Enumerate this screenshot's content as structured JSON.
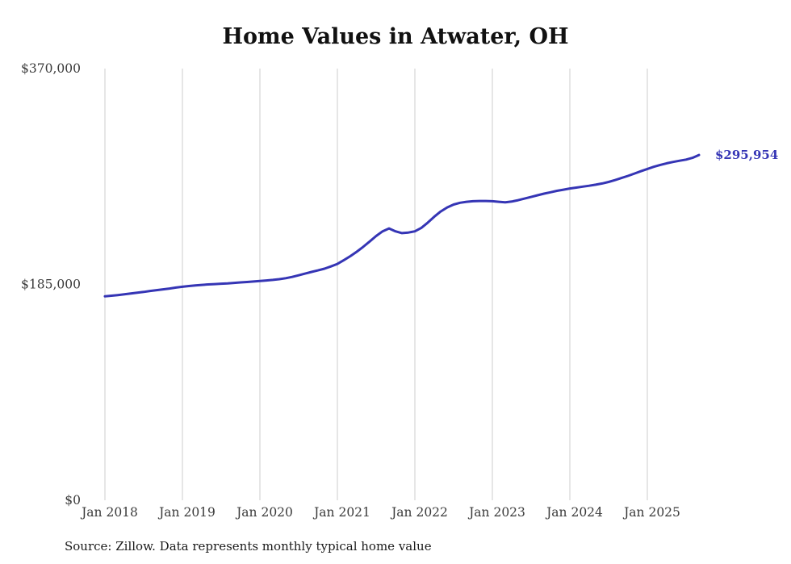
{
  "chart_data": {
    "type": "line",
    "title": "Home Values in Atwater, OH",
    "source": "Source: Zillow. Data represents monthly typical home value",
    "end_label": "$295,954",
    "end_value": 295954,
    "line_color": "#3535b5",
    "grid": "vertical",
    "grid_color": "#cccccc",
    "tick_text_color": "#3a3a3a",
    "ylim": [
      0,
      370000
    ],
    "y_ticks": [
      0,
      185000,
      370000
    ],
    "y_tick_labels": [
      "$0",
      "$185,000",
      "$370,000"
    ],
    "x_tick_labels": [
      "Jan 2018",
      "Jan 2019",
      "Jan 2020",
      "Jan 2021",
      "Jan 2022",
      "Jan 2023",
      "Jan 2024",
      "Jan 2025"
    ],
    "x": [
      "2018-01",
      "2018-02",
      "2018-03",
      "2018-04",
      "2018-05",
      "2018-06",
      "2018-07",
      "2018-08",
      "2018-09",
      "2018-10",
      "2018-11",
      "2018-12",
      "2019-01",
      "2019-02",
      "2019-03",
      "2019-04",
      "2019-05",
      "2019-06",
      "2019-07",
      "2019-08",
      "2019-09",
      "2019-10",
      "2019-11",
      "2019-12",
      "2020-01",
      "2020-02",
      "2020-03",
      "2020-04",
      "2020-05",
      "2020-06",
      "2020-07",
      "2020-08",
      "2020-09",
      "2020-10",
      "2020-11",
      "2020-12",
      "2021-01",
      "2021-02",
      "2021-03",
      "2021-04",
      "2021-05",
      "2021-06",
      "2021-07",
      "2021-08",
      "2021-09",
      "2021-10",
      "2021-11",
      "2021-12",
      "2022-01",
      "2022-02",
      "2022-03",
      "2022-04",
      "2022-05",
      "2022-06",
      "2022-07",
      "2022-08",
      "2022-09",
      "2022-10",
      "2022-11",
      "2022-12",
      "2023-01",
      "2023-02",
      "2023-03",
      "2023-04",
      "2023-05",
      "2023-06",
      "2023-07",
      "2023-08",
      "2023-09",
      "2023-10",
      "2023-11",
      "2023-12",
      "2024-01",
      "2024-02",
      "2024-03",
      "2024-04",
      "2024-05",
      "2024-06",
      "2024-07",
      "2024-08",
      "2024-09",
      "2024-10",
      "2024-11",
      "2024-12",
      "2025-01",
      "2025-02",
      "2025-03",
      "2025-04",
      "2025-05",
      "2025-06",
      "2025-07",
      "2025-08",
      "2025-09"
    ],
    "values": [
      174800,
      175300,
      175900,
      176500,
      177200,
      177900,
      178600,
      179400,
      180100,
      180800,
      181500,
      182300,
      183000,
      183600,
      184100,
      184600,
      185000,
      185300,
      185600,
      185900,
      186300,
      186700,
      187100,
      187500,
      188000,
      188400,
      188900,
      189500,
      190300,
      191400,
      192800,
      194300,
      195700,
      197000,
      198500,
      200400,
      202600,
      205800,
      209200,
      213000,
      217200,
      221800,
      226500,
      230500,
      233000,
      230500,
      229000,
      229500,
      230500,
      233500,
      238000,
      243000,
      247500,
      251000,
      253500,
      255000,
      255800,
      256300,
      256500,
      256500,
      256300,
      255800,
      255400,
      256000,
      257200,
      258600,
      260000,
      261400,
      262800,
      264000,
      265200,
      266200,
      267200,
      268000,
      268800,
      269600,
      270500,
      271500,
      272800,
      274400,
      276200,
      278000,
      280000,
      282000,
      284000,
      285800,
      287400,
      288800,
      290000,
      291000,
      292000,
      293500,
      295954
    ]
  }
}
